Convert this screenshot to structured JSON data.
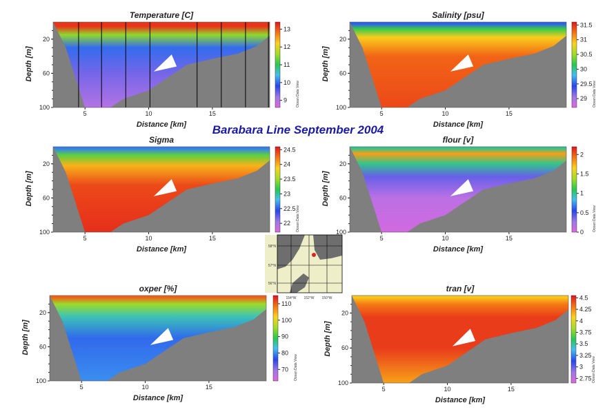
{
  "main_title": "Barabara Line   September 2004",
  "watermark": "Ocean Data View",
  "colors": {
    "terrain": "#7f7f7f",
    "title_blue": "#1a1aa6",
    "station_line": "#000000",
    "map_land": "#6e6e6e",
    "map_water": "#eeeec8",
    "map_marker": "#e02020"
  },
  "inset_map": {
    "lat_labels": [
      "58°N",
      "57°N",
      "56°N"
    ],
    "lon_labels": [
      "154°W",
      "152°W",
      "150°W"
    ]
  },
  "chart_data": [
    {
      "type": "heatmap",
      "title": "Temperature [C]",
      "xlabel": "Distance [km]",
      "ylabel": "Depth [m]",
      "xlim": [
        2.5,
        19.5
      ],
      "ylim": [
        100,
        0
      ],
      "xticks": [
        "5",
        "10",
        "15"
      ],
      "yticks": [
        "20",
        "60",
        "100"
      ],
      "colorbar_ticks": [
        "13",
        "12",
        "11",
        "10",
        "9"
      ],
      "colorbar_range": [
        8.6,
        13.4
      ],
      "station_lines_km": [
        4.5,
        6.3,
        8.2,
        10.1,
        13.8,
        15.7,
        17.6,
        19.4
      ],
      "layers": [
        {
          "depth": 5,
          "value": 13.2
        },
        {
          "depth": 15,
          "value": 11.5
        },
        {
          "depth": 30,
          "value": 10.0
        },
        {
          "depth": 60,
          "value": 9.4
        },
        {
          "depth": 100,
          "value": 9.0
        }
      ]
    },
    {
      "type": "heatmap",
      "title": "Salinity [psu]",
      "xlabel": "Distance [km]",
      "ylabel": "Depth [m]",
      "xlim": [
        2.5,
        19.5
      ],
      "ylim": [
        100,
        0
      ],
      "xticks": [
        "5",
        "10",
        "15"
      ],
      "yticks": [
        "20",
        "60",
        "100"
      ],
      "colorbar_ticks": [
        "31.5",
        "31",
        "30.5",
        "30",
        "29.5",
        "29"
      ],
      "colorbar_range": [
        28.7,
        31.6
      ],
      "layers": [
        {
          "depth": 2,
          "value": 29.5
        },
        {
          "depth": 8,
          "value": 30.2
        },
        {
          "depth": 18,
          "value": 30.9
        },
        {
          "depth": 40,
          "value": 31.3
        },
        {
          "depth": 100,
          "value": 31.4
        }
      ]
    },
    {
      "type": "heatmap",
      "title": "Sigma",
      "xlabel": "Distance [km]",
      "ylabel": "Depth [m]",
      "xlim": [
        2.5,
        19.5
      ],
      "ylim": [
        100,
        0
      ],
      "xticks": [
        "5",
        "10",
        "15"
      ],
      "yticks": [
        "20",
        "60",
        "100"
      ],
      "colorbar_ticks": [
        "24.5",
        "24",
        "23.5",
        "23",
        "22.5",
        "22"
      ],
      "colorbar_range": [
        21.7,
        24.6
      ],
      "layers": [
        {
          "depth": 2,
          "value": 22.6
        },
        {
          "depth": 10,
          "value": 23.3
        },
        {
          "depth": 22,
          "value": 24.0
        },
        {
          "depth": 45,
          "value": 24.4
        },
        {
          "depth": 100,
          "value": 24.5
        }
      ]
    },
    {
      "type": "heatmap",
      "title": "flour [v]",
      "xlabel": "Distance [km]",
      "ylabel": "Depth [m]",
      "xlim": [
        2.5,
        19.5
      ],
      "ylim": [
        100,
        0
      ],
      "xticks": [
        "5",
        "10",
        "15"
      ],
      "yticks": [
        "20",
        "60",
        "100"
      ],
      "colorbar_ticks": [
        "2",
        "1.5",
        "1",
        "0.5",
        "0"
      ],
      "colorbar_range": [
        0,
        2.2
      ],
      "layers": [
        {
          "depth": 2,
          "value": 1.0
        },
        {
          "depth": 8,
          "value": 1.8
        },
        {
          "depth": 20,
          "value": 1.0
        },
        {
          "depth": 35,
          "value": 0.4
        },
        {
          "depth": 60,
          "value": 0.15
        },
        {
          "depth": 100,
          "value": 0.05
        }
      ]
    },
    {
      "type": "heatmap",
      "title": "oxper [%]",
      "xlabel": "Distance [km]",
      "ylabel": "Depth [m]",
      "xlim": [
        2.5,
        19.5
      ],
      "ylim": [
        100,
        0
      ],
      "xticks": [
        "5",
        "10",
        "15"
      ],
      "yticks": [
        "20",
        "60",
        "100"
      ],
      "colorbar_ticks": [
        "110",
        "100",
        "90",
        "80",
        "70"
      ],
      "colorbar_range": [
        63,
        115
      ],
      "layers": [
        {
          "depth": 2,
          "value": 110
        },
        {
          "depth": 10,
          "value": 95
        },
        {
          "depth": 25,
          "value": 85
        },
        {
          "depth": 50,
          "value": 78
        },
        {
          "depth": 100,
          "value": 80
        }
      ]
    },
    {
      "type": "heatmap",
      "title": "tran [v]",
      "xlabel": "Distance [km]",
      "ylabel": "Depth [m]",
      "xlim": [
        2.5,
        19.5
      ],
      "ylim": [
        100,
        0
      ],
      "xticks": [
        "5",
        "10",
        "15"
      ],
      "yticks": [
        "20",
        "60",
        "100"
      ],
      "colorbar_ticks": [
        "4.5",
        "4.25",
        "4",
        "3.75",
        "3.5",
        "3.25",
        "3",
        "2.75"
      ],
      "colorbar_range": [
        2.65,
        4.55
      ],
      "layers": [
        {
          "depth": 2,
          "value": 4.1
        },
        {
          "depth": 10,
          "value": 4.3
        },
        {
          "depth": 25,
          "value": 4.45
        },
        {
          "depth": 60,
          "value": 4.45
        },
        {
          "depth": 100,
          "value": 4.2
        }
      ]
    }
  ]
}
